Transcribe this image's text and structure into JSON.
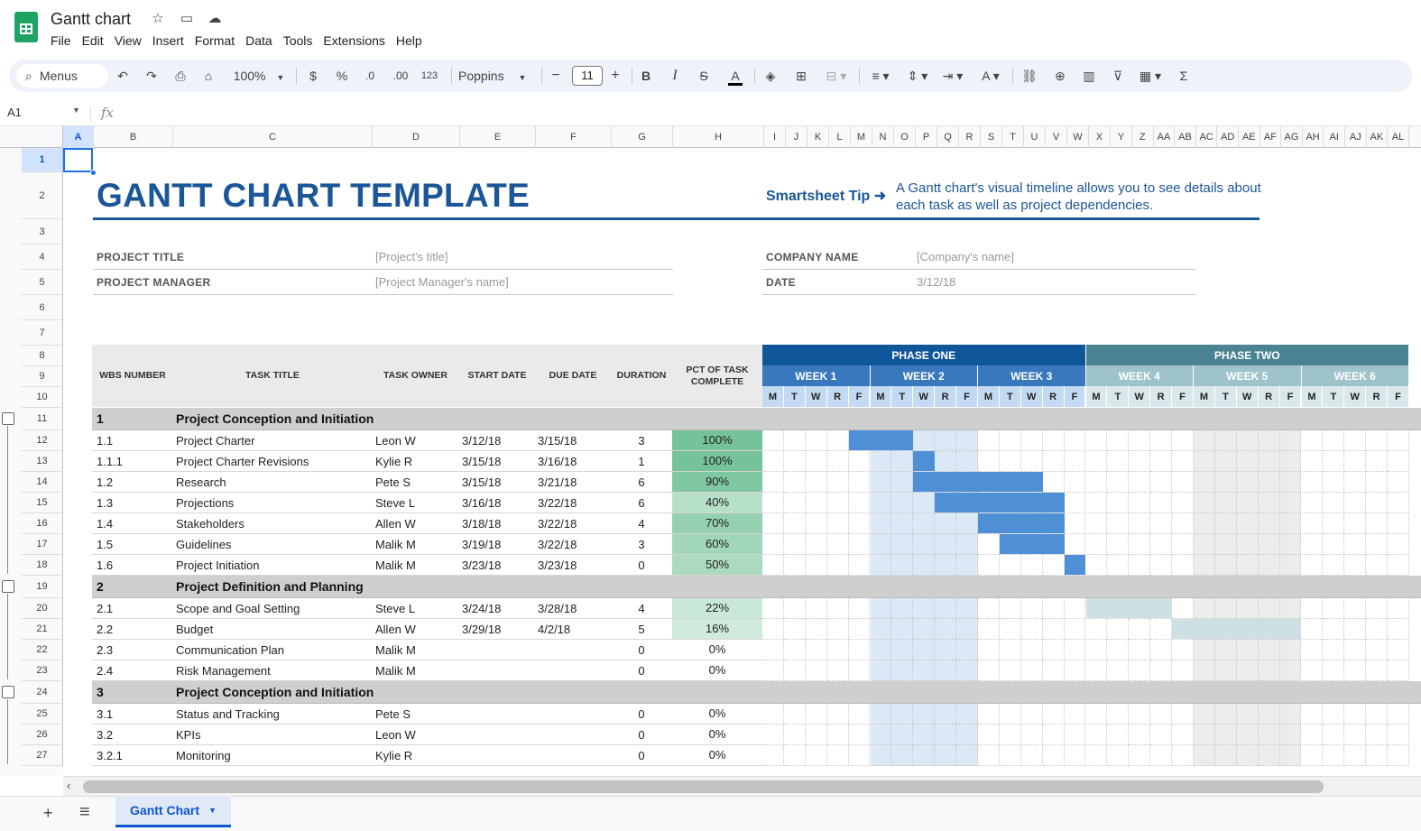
{
  "app": {
    "title": "Gantt chart",
    "menus": [
      "File",
      "Edit",
      "View",
      "Insert",
      "Format",
      "Data",
      "Tools",
      "Extensions",
      "Help"
    ]
  },
  "toolbar": {
    "search_label": "Menus",
    "zoom": "100%",
    "currency": "$",
    "percent": "%",
    "dec_decrease": ".0",
    "dec_increase": ".00",
    "number_format": "123",
    "font": "Poppins",
    "font_size": "11",
    "minus": "−",
    "plus": "+",
    "bold": "B",
    "italic": "I",
    "strike": "S",
    "text_color": "A",
    "sum": "Σ"
  },
  "formula_bar": {
    "cell_ref": "A1",
    "fx": "fx"
  },
  "columns": [
    "A",
    "B",
    "C",
    "D",
    "E",
    "F",
    "G",
    "H",
    "I",
    "J",
    "K",
    "L",
    "M",
    "N",
    "O",
    "P",
    "Q",
    "R",
    "S",
    "T",
    "U",
    "V",
    "W",
    "X",
    "Y",
    "Z",
    "AA",
    "AB",
    "AC",
    "AD",
    "AE",
    "AF",
    "AG",
    "AH",
    "AI",
    "AJ",
    "AK",
    "AL"
  ],
  "rows": [
    "1",
    "2",
    "3",
    "4",
    "5",
    "6",
    "7",
    "8",
    "9",
    "10",
    "11",
    "12",
    "13",
    "14",
    "15",
    "16",
    "17",
    "18",
    "19",
    "20",
    "21",
    "22",
    "23",
    "24",
    "25",
    "26",
    "27"
  ],
  "sheet": {
    "title": "GANTT CHART TEMPLATE",
    "tip_label": "Smartsheet Tip ➜",
    "tip_text": "A Gantt chart's visual timeline allows you to see details about each task as well as project dependencies.",
    "fields": {
      "project_title_label": "PROJECT TITLE",
      "project_title_value": "[Project's title]",
      "project_manager_label": "PROJECT MANAGER",
      "project_manager_value": "[Project Manager's name]",
      "company_label": "COMPANY NAME",
      "company_value": "[Company's name]",
      "date_label": "DATE",
      "date_value": "3/12/18"
    },
    "headers": {
      "wbs": "WBS NUMBER",
      "task": "TASK TITLE",
      "owner": "TASK OWNER",
      "start": "START DATE",
      "due": "DUE DATE",
      "duration": "DURATION",
      "pct": "PCT OF TASK COMPLETE"
    },
    "phases": [
      "PHASE ONE",
      "PHASE TWO"
    ],
    "weeks": [
      "WEEK 1",
      "WEEK 2",
      "WEEK 3",
      "WEEK 4",
      "WEEK 5",
      "WEEK 6"
    ],
    "days": [
      "M",
      "T",
      "W",
      "R",
      "F"
    ],
    "groups": [
      {
        "num": "1",
        "title": "Project Conception and Initiation",
        "tasks": [
          {
            "wbs": "1.1",
            "task": "Project Charter",
            "owner": "Leon W",
            "start": "3/12/18",
            "due": "3/15/18",
            "duration": "3",
            "pct": "100%",
            "pctv": 1.0
          },
          {
            "wbs": "1.1.1",
            "task": "Project Charter Revisions",
            "owner": "Kylie R",
            "start": "3/15/18",
            "due": "3/16/18",
            "duration": "1",
            "pct": "100%",
            "pctv": 1.0
          },
          {
            "wbs": "1.2",
            "task": "Research",
            "owner": "Pete S",
            "start": "3/15/18",
            "due": "3/21/18",
            "duration": "6",
            "pct": "90%",
            "pctv": 0.9
          },
          {
            "wbs": "1.3",
            "task": "Projections",
            "owner": "Steve L",
            "start": "3/16/18",
            "due": "3/22/18",
            "duration": "6",
            "pct": "40%",
            "pctv": 0.4
          },
          {
            "wbs": "1.4",
            "task": "Stakeholders",
            "owner": "Allen W",
            "start": "3/18/18",
            "due": "3/22/18",
            "duration": "4",
            "pct": "70%",
            "pctv": 0.7
          },
          {
            "wbs": "1.5",
            "task": "Guidelines",
            "owner": "Malik M",
            "start": "3/19/18",
            "due": "3/22/18",
            "duration": "3",
            "pct": "60%",
            "pctv": 0.6
          },
          {
            "wbs": "1.6",
            "task": "Project Initiation",
            "owner": "Malik M",
            "start": "3/23/18",
            "due": "3/23/18",
            "duration": "0",
            "pct": "50%",
            "pctv": 0.5
          }
        ]
      },
      {
        "num": "2",
        "title": "Project Definition and Planning",
        "tasks": [
          {
            "wbs": "2.1",
            "task": "Scope and Goal Setting",
            "owner": "Steve L",
            "start": "3/24/18",
            "due": "3/28/18",
            "duration": "4",
            "pct": "22%",
            "pctv": 0.22
          },
          {
            "wbs": "2.2",
            "task": "Budget",
            "owner": "Allen W",
            "start": "3/29/18",
            "due": "4/2/18",
            "duration": "5",
            "pct": "16%",
            "pctv": 0.16
          },
          {
            "wbs": "2.3",
            "task": "Communication Plan",
            "owner": "Malik M",
            "start": "",
            "due": "",
            "duration": "0",
            "pct": "0%",
            "pctv": 0
          },
          {
            "wbs": "2.4",
            "task": "Risk Management",
            "owner": "Malik M",
            "start": "",
            "due": "",
            "duration": "0",
            "pct": "0%",
            "pctv": 0
          }
        ]
      },
      {
        "num": "3",
        "title": "Project Conception and Initiation",
        "tasks": [
          {
            "wbs": "3.1",
            "task": "Status and Tracking",
            "owner": "Pete S",
            "start": "",
            "due": "",
            "duration": "0",
            "pct": "0%",
            "pctv": 0
          },
          {
            "wbs": "3.2",
            "task": "KPIs",
            "owner": "Leon W",
            "start": "",
            "due": "",
            "duration": "0",
            "pct": "0%",
            "pctv": 0
          },
          {
            "wbs": "3.2.1",
            "task": "Monitoring",
            "owner": "Kylie R",
            "start": "",
            "due": "",
            "duration": "0",
            "pct": "0%",
            "pctv": 0
          }
        ]
      }
    ],
    "gantt_bars": {
      "1.1": {
        "from": 4,
        "to": 7
      },
      "1.1.1": {
        "from": 7,
        "to": 8
      },
      "1.2": {
        "from": 7,
        "to": 13
      },
      "1.3": {
        "from": 8,
        "to": 14
      },
      "1.4": {
        "from": 10,
        "to": 14
      },
      "1.5": {
        "from": 11,
        "to": 14
      },
      "1.6": {
        "from": 14,
        "to": 15
      },
      "2.1": {
        "from": 15,
        "to": 19,
        "phase": 2
      },
      "2.2": {
        "from": 19,
        "to": 25,
        "phase": 2
      }
    },
    "colors": {
      "brand": "#1b5698",
      "phase1": "#10569a",
      "phase2": "#4a8392",
      "bar1": "#4f8fd6",
      "bar2": "#cfe0e4",
      "group_row": "#cfcfcf",
      "week2_shade": "#dbe8f5",
      "week5_shade": "#ececec"
    }
  },
  "tabs": {
    "sheet_name": "Gantt Chart",
    "add": "+",
    "list": "≡"
  }
}
